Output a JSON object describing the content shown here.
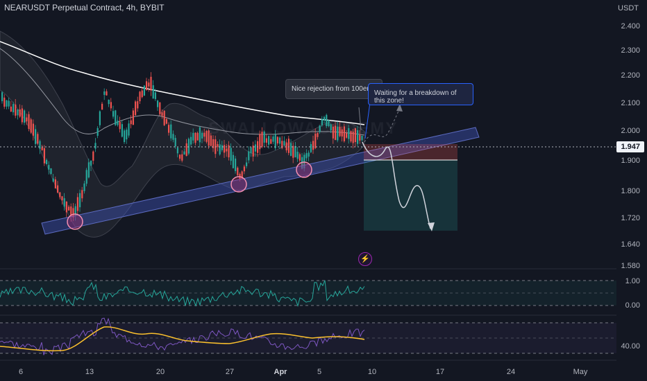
{
  "header": {
    "title": "NEARUSDT Perpetual Contract, 4h, BYBIT"
  },
  "axis": {
    "unit": "USDT",
    "price_ticks": [
      "2.400",
      "2.300",
      "2.200",
      "2.100",
      "2.000",
      "1.900",
      "1.800",
      "1.720",
      "1.640",
      "1.580"
    ],
    "rsi_ticks": [
      "1.00",
      "0.00"
    ],
    "stoch_ticks": [
      "40.00"
    ],
    "time_ticks": [
      "6",
      "13",
      "20",
      "27",
      "Apr",
      "5",
      "10",
      "17",
      "24",
      "May"
    ]
  },
  "current_price": "1.947",
  "annotations": {
    "rejection": "Nice rejection from 100ema",
    "breakdown": "Waiting for a breakdown of this zone!"
  },
  "watermark": "SWALLOWACADEMY",
  "colors": {
    "background": "#131722",
    "bull": "#26a69a",
    "bear": "#ef5350",
    "trendline": "#3f51b5",
    "short_target": "#26a69a",
    "stop": "#ef5350"
  },
  "icons": {
    "alert": "lightning-icon"
  }
}
